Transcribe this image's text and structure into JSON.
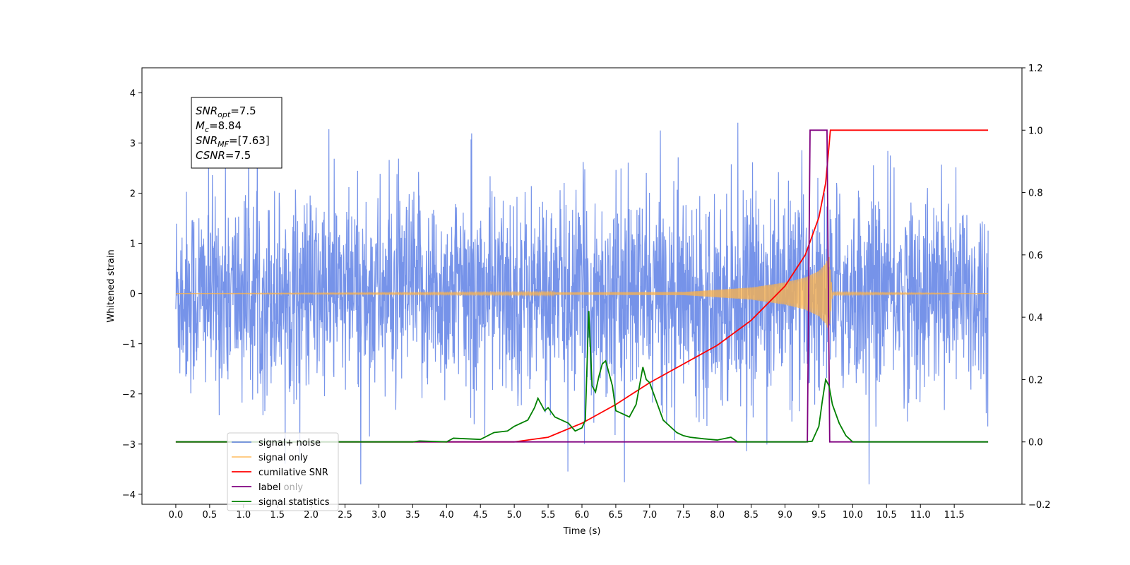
{
  "chart_data": {
    "type": "line",
    "title": "",
    "xlabel": "Time (s)",
    "ylabel_left": "Whitened strain",
    "ylabel_right": "",
    "xlim": [
      -0.5,
      12.5
    ],
    "ylim_left": [
      -4.2,
      4.5
    ],
    "ylim_right": [
      -0.2,
      1.2
    ],
    "x_ticks": [
      "0.0",
      "0.5",
      "1.0",
      "1.5",
      "2.0",
      "2.5",
      "3.0",
      "3.5",
      "4.0",
      "4.5",
      "5.0",
      "5.5",
      "6.0",
      "6.5",
      "7.0",
      "7.5",
      "8.0",
      "8.5",
      "9.0",
      "9.5",
      "10.0",
      "10.5",
      "11.0",
      "11.5"
    ],
    "y_ticks_left": [
      "-4",
      "-3",
      "-2",
      "-1",
      "0",
      "1",
      "2",
      "3",
      "4"
    ],
    "y_ticks_right": [
      "-0.2",
      "0.0",
      "0.2",
      "0.4",
      "0.6",
      "0.8",
      "1.0",
      "1.2"
    ],
    "grid": false,
    "info_box": {
      "lines": [
        {
          "main": "SNR",
          "sub": "opt",
          "rest": "=7.5"
        },
        {
          "main": "M",
          "sub": "c",
          "rest": "=8.84"
        },
        {
          "main": "SNR",
          "sub": "MF",
          "rest": "=[7.63]"
        },
        {
          "main": "CSNR",
          "sub": "",
          "rest": "=7.5"
        }
      ]
    },
    "legend": {
      "placement": "lower-left",
      "entries": [
        {
          "label": "signal+ noise",
          "color": "#4169e1"
        },
        {
          "label": "signal only",
          "color": "#ffb347"
        },
        {
          "label": "cumilative SNR",
          "color": "#ff0000"
        },
        {
          "label": "label",
          "color": "#800080"
        },
        {
          "label": "signal statistics",
          "color": "#008000"
        }
      ],
      "hidden_text": "label only"
    },
    "series": [
      {
        "name": "signal+ noise",
        "axis": "left",
        "color": "#4169e1",
        "description_values": {
          "x_range": [
            0.0,
            12.0
          ],
          "approx_std": 1.0
        }
      },
      {
        "name": "signal only",
        "axis": "left",
        "color": "#ffb347",
        "envelope": {
          "x": [
            0.0,
            7.5,
            8.5,
            9.0,
            9.3,
            9.5,
            9.6,
            9.65,
            9.7,
            12.0
          ],
          "amp": [
            0.0,
            0.03,
            0.12,
            0.22,
            0.32,
            0.45,
            0.6,
            0.75,
            0.02,
            0.0
          ]
        }
      },
      {
        "name": "cumilative SNR",
        "axis": "right",
        "color": "#ff0000",
        "x": [
          0.0,
          5.0,
          5.5,
          6.0,
          6.5,
          7.0,
          7.5,
          8.0,
          8.5,
          9.0,
          9.3,
          9.5,
          9.6,
          9.65,
          9.67,
          12.0
        ],
        "y": [
          0.0,
          0.0,
          0.015,
          0.06,
          0.12,
          0.19,
          0.25,
          0.31,
          0.39,
          0.5,
          0.6,
          0.72,
          0.83,
          0.95,
          1.0,
          1.0
        ]
      },
      {
        "name": "label",
        "axis": "right",
        "color": "#800080",
        "x": [
          0.0,
          9.33,
          9.37,
          9.62,
          9.66,
          12.0
        ],
        "y": [
          0.0,
          0.0,
          1.0,
          1.0,
          0.0,
          0.0
        ]
      },
      {
        "name": "signal statistics",
        "axis": "right",
        "color": "#008000",
        "x": [
          0.0,
          3.5,
          3.6,
          4.0,
          4.1,
          4.5,
          4.7,
          4.9,
          5.0,
          5.1,
          5.2,
          5.3,
          5.35,
          5.45,
          5.5,
          5.6,
          5.7,
          5.8,
          5.9,
          6.0,
          6.05,
          6.1,
          6.15,
          6.2,
          6.25,
          6.3,
          6.35,
          6.45,
          6.5,
          6.6,
          6.7,
          6.8,
          6.9,
          6.95,
          7.0,
          7.05,
          7.1,
          7.15,
          7.2,
          7.3,
          7.4,
          7.5,
          7.6,
          7.8,
          8.0,
          8.2,
          8.3,
          8.5,
          9.0,
          9.3,
          9.4,
          9.5,
          9.55,
          9.6,
          9.65,
          9.7,
          9.8,
          9.9,
          10.0,
          12.0
        ],
        "y": [
          0.0,
          0.0,
          0.003,
          0.0,
          0.012,
          0.008,
          0.03,
          0.035,
          0.05,
          0.06,
          0.07,
          0.11,
          0.14,
          0.1,
          0.11,
          0.08,
          0.07,
          0.06,
          0.035,
          0.045,
          0.07,
          0.42,
          0.18,
          0.16,
          0.21,
          0.25,
          0.26,
          0.18,
          0.1,
          0.09,
          0.08,
          0.12,
          0.24,
          0.2,
          0.19,
          0.16,
          0.13,
          0.1,
          0.07,
          0.05,
          0.03,
          0.02,
          0.015,
          0.01,
          0.006,
          0.015,
          0.0,
          0.0,
          0.0,
          0.0,
          0.002,
          0.05,
          0.13,
          0.2,
          0.18,
          0.12,
          0.06,
          0.02,
          0.0,
          0.0
        ]
      }
    ]
  }
}
